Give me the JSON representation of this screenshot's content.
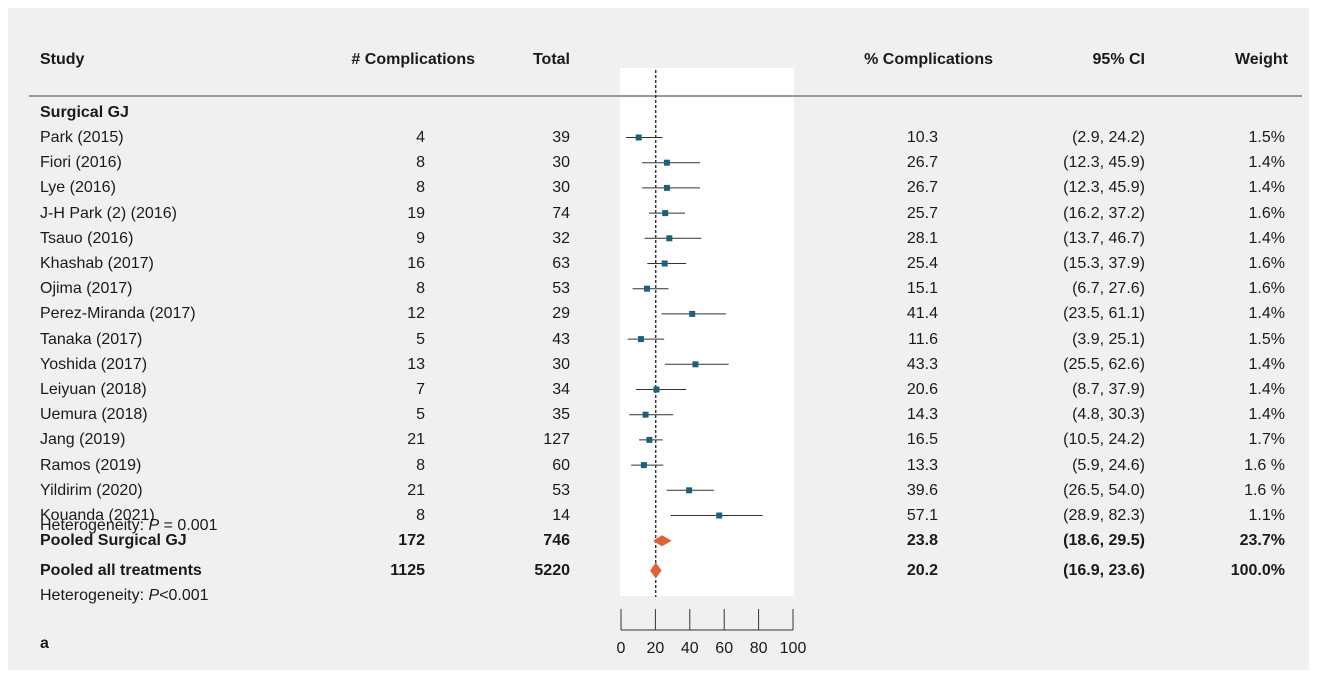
{
  "headers": {
    "study": "Study",
    "complications": "# Complications",
    "total": "Total",
    "pct": "% Complications",
    "ci": "95% CI",
    "weight": "Weight"
  },
  "group_label": "Surgical GJ",
  "studies": [
    {
      "study": "Park (2015)",
      "complications": "4",
      "total": "39",
      "pct": "10.3",
      "ci": "(2.9, 24.2)",
      "weight": "1.5%"
    },
    {
      "study": "Fiori (2016)",
      "complications": "8",
      "total": "30",
      "pct": "26.7",
      "ci": "(12.3, 45.9)",
      "weight": "1.4%"
    },
    {
      "study": "Lye (2016)",
      "complications": "8",
      "total": "30",
      "pct": "26.7",
      "ci": "(12.3, 45.9)",
      "weight": "1.4%"
    },
    {
      "study": "J-H Park (2) (2016)",
      "complications": "19",
      "total": "74",
      "pct": "25.7",
      "ci": "(16.2, 37.2)",
      "weight": "1.6%"
    },
    {
      "study": "Tsauo (2016)",
      "complications": "9",
      "total": "32",
      "pct": "28.1",
      "ci": "(13.7, 46.7)",
      "weight": "1.4%"
    },
    {
      "study": "Khashab (2017)",
      "complications": "16",
      "total": "63",
      "pct": "25.4",
      "ci": "(15.3, 37.9)",
      "weight": "1.6%"
    },
    {
      "study": "Ojima (2017)",
      "complications": "8",
      "total": "53",
      "pct": "15.1",
      "ci": "(6.7, 27.6)",
      "weight": "1.6%"
    },
    {
      "study": "Perez-Miranda (2017)",
      "complications": "12",
      "total": "29",
      "pct": "41.4",
      "ci": "(23.5, 61.1)",
      "weight": "1.4%"
    },
    {
      "study": "Tanaka (2017)",
      "complications": "5",
      "total": "43",
      "pct": "11.6",
      "ci": "(3.9, 25.1)",
      "weight": "1.5%"
    },
    {
      "study": "Yoshida (2017)",
      "complications": "13",
      "total": "30",
      "pct": "43.3",
      "ci": "(25.5, 62.6)",
      "weight": "1.4%"
    },
    {
      "study": "Leiyuan (2018)",
      "complications": "7",
      "total": "34",
      "pct": "20.6",
      "ci": "(8.7, 37.9)",
      "weight": "1.4%"
    },
    {
      "study": "Uemura (2018)",
      "complications": "5",
      "total": "35",
      "pct": "14.3",
      "ci": "(4.8, 30.3)",
      "weight": "1.4%"
    },
    {
      "study": "Jang (2019)",
      "complications": "21",
      "total": "127",
      "pct": "16.5",
      "ci": "(10.5, 24.2)",
      "weight": "1.7%"
    },
    {
      "study": "Ramos (2019)",
      "complications": "8",
      "total": "60",
      "pct": "13.3",
      "ci": "(5.9, 24.6)",
      "weight": "1.6 %"
    },
    {
      "study": "Yildirim (2020)",
      "complications": "21",
      "total": "53",
      "pct": "39.6",
      "ci": "(26.5, 54.0)",
      "weight": "1.6 %"
    },
    {
      "study": "Kouanda (2021)",
      "complications": "8",
      "total": "14",
      "pct": "57.1",
      "ci": "(28.9, 82.3)",
      "weight": "1.1%"
    }
  ],
  "pooled_group": {
    "study": "Pooled Surgical GJ",
    "complications": "172",
    "total": "746",
    "pct": "23.8",
    "ci": "(18.6, 29.5)",
    "weight": "23.7%"
  },
  "heterogeneity_group": {
    "prefix": "Heterogeneity: ",
    "p": "P",
    "value": " = 0.001"
  },
  "pooled_all": {
    "study": "Pooled all treatments",
    "complications": "1125",
    "total": "5220",
    "pct": "20.2",
    "ci": "(16.9, 23.6)",
    "weight": "100.0%"
  },
  "heterogeneity_all": {
    "prefix": "Heterogeneity: ",
    "p": "P",
    "value": "<0.001"
  },
  "panel_letter": "a",
  "colors": {
    "marker": "#1f5f7a",
    "diamond": "#e0603a",
    "panel_bg": "#f0f0f0"
  },
  "chart_data": {
    "type": "forest",
    "xlim": [
      0,
      100
    ],
    "xticks": [
      0,
      20,
      40,
      60,
      80,
      100
    ],
    "reference_line": 20.2,
    "points": [
      {
        "est": 10.3,
        "lo": 2.9,
        "hi": 24.2
      },
      {
        "est": 26.7,
        "lo": 12.3,
        "hi": 45.9
      },
      {
        "est": 26.7,
        "lo": 12.3,
        "hi": 45.9
      },
      {
        "est": 25.7,
        "lo": 16.2,
        "hi": 37.2
      },
      {
        "est": 28.1,
        "lo": 13.7,
        "hi": 46.7
      },
      {
        "est": 25.4,
        "lo": 15.3,
        "hi": 37.9
      },
      {
        "est": 15.1,
        "lo": 6.7,
        "hi": 27.6
      },
      {
        "est": 41.4,
        "lo": 23.5,
        "hi": 61.1
      },
      {
        "est": 11.6,
        "lo": 3.9,
        "hi": 25.1
      },
      {
        "est": 43.3,
        "lo": 25.5,
        "hi": 62.6
      },
      {
        "est": 20.6,
        "lo": 8.7,
        "hi": 37.9
      },
      {
        "est": 14.3,
        "lo": 4.8,
        "hi": 30.3
      },
      {
        "est": 16.5,
        "lo": 10.5,
        "hi": 24.2
      },
      {
        "est": 13.3,
        "lo": 5.9,
        "hi": 24.6
      },
      {
        "est": 39.6,
        "lo": 26.5,
        "hi": 54.0
      },
      {
        "est": 57.1,
        "lo": 28.9,
        "hi": 82.3
      }
    ],
    "pooled": [
      {
        "est": 23.8,
        "lo": 18.6,
        "hi": 29.5
      },
      {
        "est": 20.2,
        "lo": 16.9,
        "hi": 23.6
      }
    ]
  }
}
